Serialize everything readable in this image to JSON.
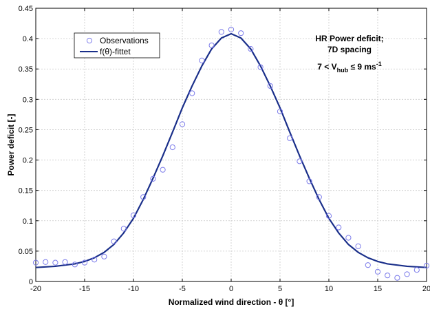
{
  "chart_data": {
    "type": "line",
    "xlabel": "Normalized wind direction - θ [°]",
    "ylabel": "Power deficit [-]",
    "xlim": [
      -20,
      20
    ],
    "ylim": [
      0,
      0.45
    ],
    "xticks": [
      -20,
      -15,
      -10,
      -5,
      0,
      5,
      10,
      15,
      20
    ],
    "xtick_labels": [
      "-20",
      "-15",
      "-10",
      "-5",
      "0",
      "5",
      "10",
      "15",
      "20"
    ],
    "yticks": [
      0,
      0.05,
      0.1,
      0.15,
      0.2,
      0.25,
      0.3,
      0.35,
      0.4,
      0.45
    ],
    "ytick_labels": [
      "0",
      "0.05",
      "0.1",
      "0.15",
      "0.2",
      "0.25",
      "0.3",
      "0.35",
      "0.4",
      "0.45"
    ],
    "grid": true,
    "legend_position": "top-left",
    "annotation": {
      "line1": "HR Power deficit;",
      "line2": "7D spacing",
      "line3_prefix": "7 < V",
      "line3_sub": "hub",
      "line3_mid": " ≤ 9 ms",
      "line3_sup": "-1"
    },
    "series": [
      {
        "name": "Observations",
        "style": "markers",
        "color": "#7b7bea",
        "x": [
          -20,
          -19,
          -18,
          -17,
          -16,
          -15,
          -14,
          -13,
          -12,
          -11,
          -10,
          -9,
          -8,
          -7,
          -6,
          -5,
          -4,
          -3,
          -2,
          -1,
          0,
          1,
          2,
          3,
          4,
          5,
          6,
          7,
          8,
          9,
          10,
          11,
          12,
          13,
          14,
          15,
          16,
          17,
          18,
          19,
          20
        ],
        "y": [
          0.031,
          0.032,
          0.031,
          0.032,
          0.028,
          0.031,
          0.036,
          0.041,
          0.066,
          0.087,
          0.109,
          0.139,
          0.169,
          0.184,
          0.221,
          0.259,
          0.31,
          0.364,
          0.389,
          0.411,
          0.415,
          0.409,
          0.383,
          0.353,
          0.322,
          0.28,
          0.236,
          0.198,
          0.165,
          0.139,
          0.108,
          0.089,
          0.072,
          0.058,
          0.027,
          0.016,
          0.01,
          0.006,
          0.012,
          0.019,
          0.026
        ]
      },
      {
        "name": "f(θ)-fittet",
        "style": "line",
        "color": "#1a2f8a",
        "x": [
          -20,
          -19,
          -18,
          -17,
          -16,
          -15,
          -14,
          -13,
          -12,
          -11,
          -10,
          -9,
          -8,
          -7,
          -6,
          -5,
          -4,
          -3,
          -2,
          -1,
          0,
          1,
          2,
          3,
          4,
          5,
          6,
          7,
          8,
          9,
          10,
          11,
          12,
          13,
          14,
          15,
          16,
          17,
          18,
          19,
          20
        ],
        "y": [
          0.023,
          0.024,
          0.025,
          0.027,
          0.029,
          0.033,
          0.039,
          0.048,
          0.061,
          0.08,
          0.104,
          0.135,
          0.17,
          0.207,
          0.246,
          0.286,
          0.322,
          0.355,
          0.383,
          0.401,
          0.408,
          0.401,
          0.383,
          0.355,
          0.322,
          0.286,
          0.246,
          0.207,
          0.17,
          0.135,
          0.104,
          0.08,
          0.061,
          0.048,
          0.039,
          0.033,
          0.029,
          0.027,
          0.025,
          0.024,
          0.023
        ]
      }
    ]
  }
}
